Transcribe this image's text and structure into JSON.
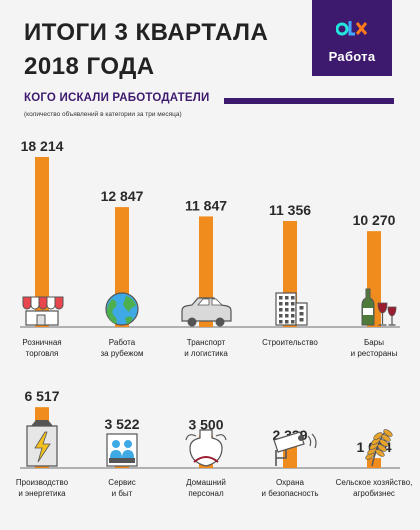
{
  "header": {
    "title_line1": "ИТОГИ 3 КВАРТАЛА",
    "title_line2": "2018 ГОДА",
    "logo_text": "Работа",
    "subtitle": "КОГО ИСКАЛИ РАБОТОДАТЕЛИ",
    "note": "(количество объявлений в категории за три месяца)"
  },
  "colors": {
    "bar": "#f08c1e",
    "brand": "#3d1a6e",
    "baseline": "#6e6e6e"
  },
  "chart_data": {
    "type": "bar",
    "title": "КОГО ИСКАЛИ РАБОТОДАТЕЛИ",
    "value_scale": [
      0,
      18214
    ],
    "grid": false,
    "rows": [
      {
        "categories": [
          {
            "label": [
              "Розничная",
              "торговля"
            ],
            "value": 18214,
            "value_label": "18 214",
            "icon": "storefront-icon"
          },
          {
            "label": [
              "Работа",
              "за рубежом"
            ],
            "value": 12847,
            "value_label": "12 847",
            "icon": "globe-icon"
          },
          {
            "label": [
              "Транспорт",
              "и логистика"
            ],
            "value": 11847,
            "value_label": "11 847",
            "icon": "car-icon"
          },
          {
            "label": [
              "Строительство"
            ],
            "value": 11356,
            "value_label": "11 356",
            "icon": "building-icon"
          },
          {
            "label": [
              "Бары",
              "и рестораны"
            ],
            "value": 10270,
            "value_label": "10 270",
            "icon": "wine-bottle-icon"
          }
        ]
      },
      {
        "categories": [
          {
            "label": [
              "Производство",
              "и энергетика"
            ],
            "value": 6517,
            "value_label": "6 517",
            "icon": "factory-lightning-icon"
          },
          {
            "label": [
              "Сервис",
              "и быт"
            ],
            "value": 3522,
            "value_label": "3 522",
            "icon": "service-people-icon"
          },
          {
            "label": [
              "Домашний",
              "персонал"
            ],
            "value": 3500,
            "value_label": "3 500",
            "icon": "apron-icon"
          },
          {
            "label": [
              "Охрана",
              "и безопасность"
            ],
            "value": 2339,
            "value_label": "2 339",
            "icon": "security-camera-icon"
          },
          {
            "label": [
              "Сельское хозяйство,",
              "агробизнес"
            ],
            "value": 1064,
            "value_label": "1 064",
            "icon": "wheat-icon"
          }
        ]
      }
    ]
  }
}
